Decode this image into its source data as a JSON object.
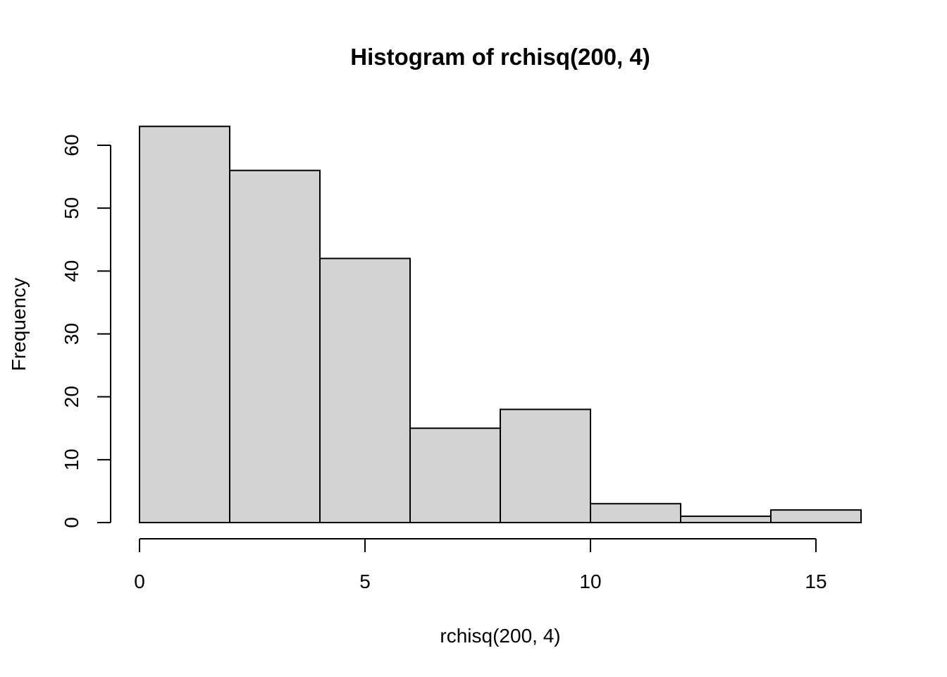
{
  "chart_data": {
    "type": "bar",
    "title": "Histogram of rchisq(200, 4)",
    "xlabel": "rchisq(200, 4)",
    "ylabel": "Frequency",
    "bins": [
      {
        "from": 0,
        "to": 2,
        "count": 63
      },
      {
        "from": 2,
        "to": 4,
        "count": 56
      },
      {
        "from": 4,
        "to": 6,
        "count": 42
      },
      {
        "from": 6,
        "to": 8,
        "count": 15
      },
      {
        "from": 8,
        "to": 10,
        "count": 18
      },
      {
        "from": 10,
        "to": 12,
        "count": 3
      },
      {
        "from": 12,
        "to": 14,
        "count": 1
      },
      {
        "from": 14,
        "to": 16,
        "count": 2
      }
    ],
    "xticks": [
      0,
      5,
      10,
      15
    ],
    "yticks": [
      0,
      10,
      20,
      30,
      40,
      50,
      60
    ],
    "xlim": [
      0,
      16
    ],
    "ylim": [
      0,
      60
    ],
    "grid": false,
    "colors": {
      "bar_fill": "#d3d3d3",
      "bar_stroke": "#000000"
    }
  }
}
